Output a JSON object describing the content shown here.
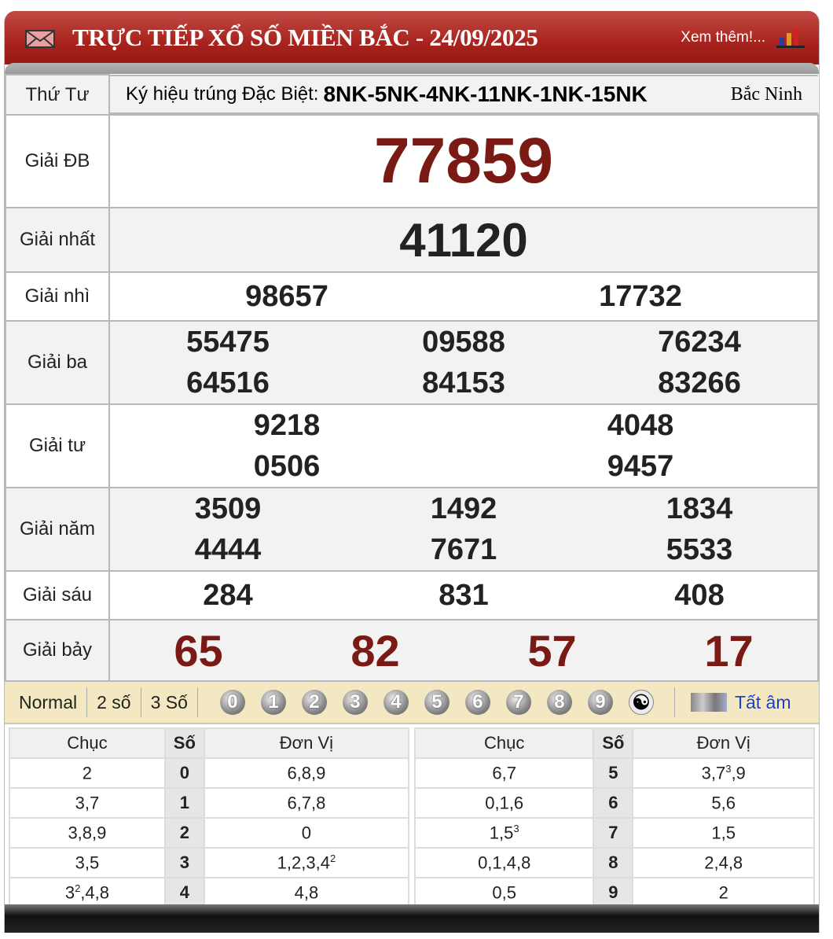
{
  "header": {
    "title": "TRỰC TIẾP XỔ SỐ MIỀN BẮC - 24/09/2025",
    "more_link": "Xem thêm!..."
  },
  "info": {
    "weekday": "Thứ Tư",
    "code_label": "Ký hiệu trúng Đặc Biệt:",
    "code_value": "8NK-5NK-4NK-11NK-1NK-15NK",
    "province": "Bắc Ninh"
  },
  "prizes": {
    "db": {
      "label": "Giải ĐB",
      "numbers": [
        "77859"
      ]
    },
    "g1": {
      "label": "Giải nhất",
      "numbers": [
        "41120"
      ]
    },
    "g2": {
      "label": "Giải nhì",
      "numbers": [
        "98657",
        "17732"
      ]
    },
    "g3": {
      "label": "Giải ba",
      "numbers": [
        "55475",
        "09588",
        "76234",
        "64516",
        "84153",
        "83266"
      ]
    },
    "g4": {
      "label": "Giải tư",
      "numbers": [
        "9218",
        "4048",
        "0506",
        "9457"
      ]
    },
    "g5": {
      "label": "Giải năm",
      "numbers": [
        "3509",
        "1492",
        "1834",
        "4444",
        "7671",
        "5533"
      ]
    },
    "g6": {
      "label": "Giải sáu",
      "numbers": [
        "284",
        "831",
        "408"
      ]
    },
    "g7": {
      "label": "Giải bảy",
      "numbers": [
        "65",
        "82",
        "57",
        "17"
      ]
    }
  },
  "colors": {
    "highlight": "#7a1a14",
    "header_red": "#a8231d",
    "bar_bg": "#f4e8c2"
  },
  "toolbar": {
    "options": [
      "Normal",
      "2 số",
      "3 Số"
    ],
    "digits": [
      "0",
      "1",
      "2",
      "3",
      "4",
      "5",
      "6",
      "7",
      "8",
      "9"
    ],
    "mute_label": "Tất âm"
  },
  "loto": {
    "headers": [
      "Chục",
      "Số",
      "Đơn Vị"
    ],
    "left": [
      {
        "chuc": [
          "2",
          "",
          ""
        ],
        "so": "0",
        "dv": [
          "6,8,9",
          "",
          ""
        ]
      },
      {
        "chuc": [
          "3,7",
          "",
          ""
        ],
        "so": "1",
        "dv": [
          "6,7,8",
          "",
          ""
        ]
      },
      {
        "chuc": [
          "3,8,9",
          "",
          ""
        ],
        "so": "2",
        "dv": [
          "0",
          "",
          ""
        ]
      },
      {
        "chuc": [
          "3,5",
          "",
          ""
        ],
        "so": "3",
        "dv": [
          "1,2,3,4",
          "2",
          ""
        ]
      },
      {
        "chuc": [
          "3",
          "2",
          ",4,8"
        ],
        "so": "4",
        "dv": [
          "4,8",
          "",
          ""
        ]
      }
    ],
    "right": [
      {
        "chuc": [
          "6,7",
          "",
          ""
        ],
        "so": "5",
        "dv": [
          "3,7",
          "3",
          ",9"
        ]
      },
      {
        "chuc": [
          "0,1,6",
          "",
          ""
        ],
        "so": "6",
        "dv": [
          "5,6",
          "",
          ""
        ]
      },
      {
        "chuc": [
          "1,5",
          "3",
          ""
        ],
        "so": "7",
        "dv": [
          "1,5",
          "",
          ""
        ]
      },
      {
        "chuc": [
          "0,1,4,8",
          "",
          ""
        ],
        "so": "8",
        "dv": [
          "2,4,8",
          "",
          ""
        ]
      },
      {
        "chuc": [
          "0,5",
          "",
          ""
        ],
        "so": "9",
        "dv": [
          "2",
          "",
          ""
        ]
      }
    ]
  }
}
